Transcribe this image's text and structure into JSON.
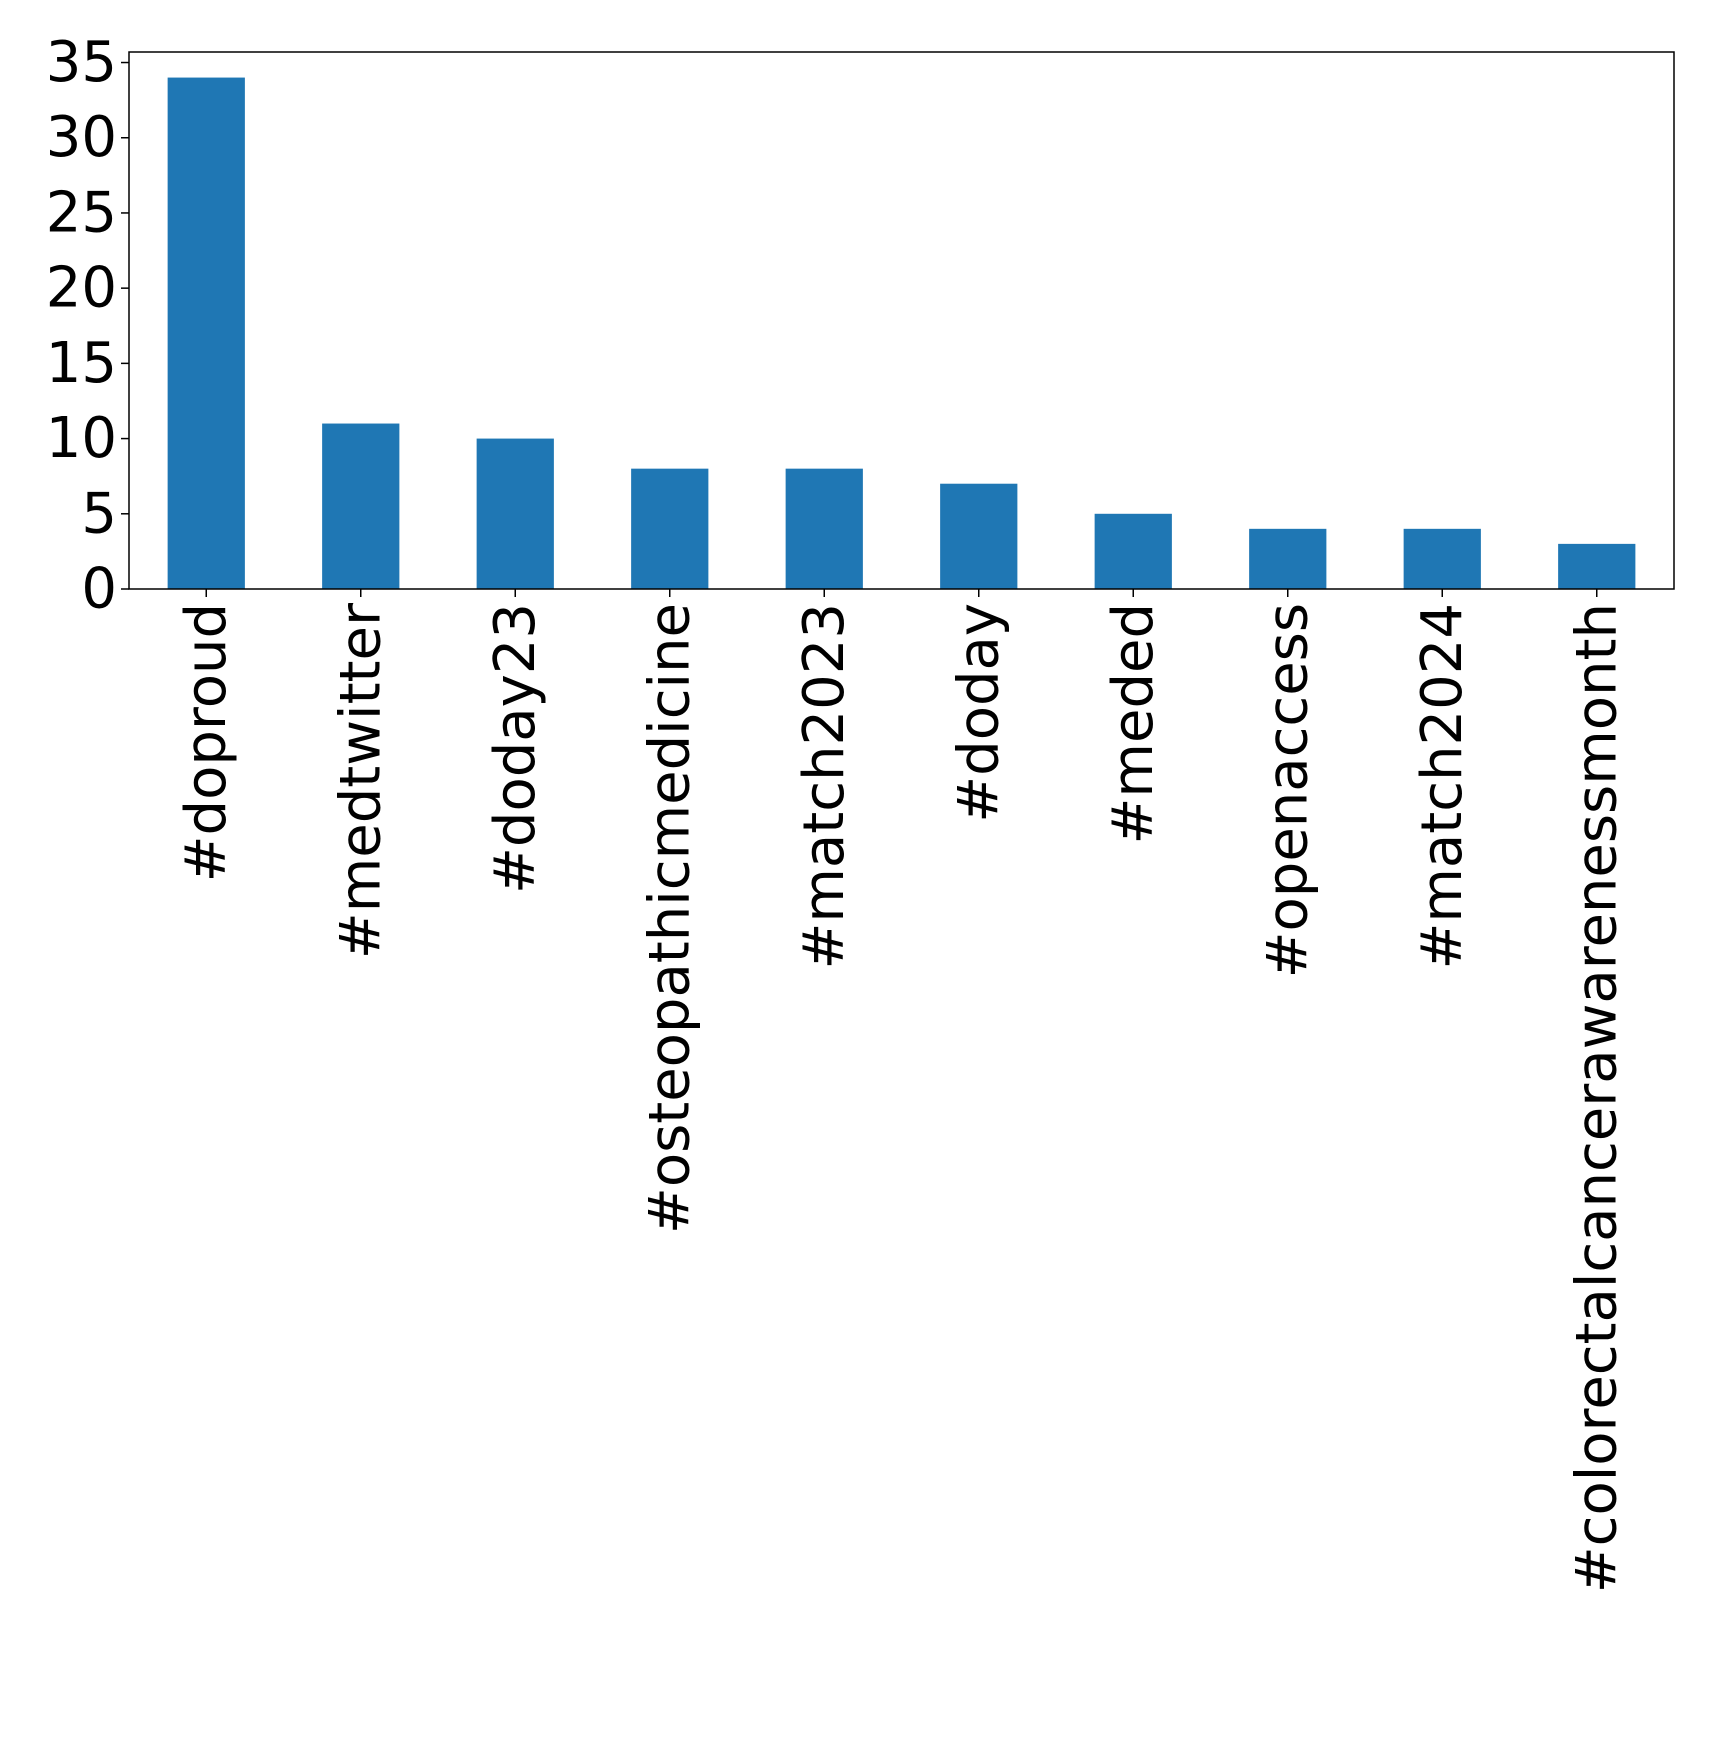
{
  "chart_data": {
    "type": "bar",
    "title": "",
    "xlabel": "",
    "ylabel": "",
    "categories": [
      "#doproud",
      "#medtwitter",
      "#doday23",
      "#osteopathicmedicine",
      "#match2023",
      "#doday",
      "#meded",
      "#openaccess",
      "#match2024",
      "#colorectalcancerawarenessmonth"
    ],
    "values": [
      34,
      11,
      10,
      8,
      8,
      7,
      5,
      4,
      4,
      3
    ],
    "ylim": [
      0,
      35.7
    ],
    "yticks": [
      0,
      5,
      10,
      15,
      20,
      25,
      30,
      35
    ],
    "grid": false,
    "legend": "none",
    "bar_color": "#1f77b4"
  }
}
